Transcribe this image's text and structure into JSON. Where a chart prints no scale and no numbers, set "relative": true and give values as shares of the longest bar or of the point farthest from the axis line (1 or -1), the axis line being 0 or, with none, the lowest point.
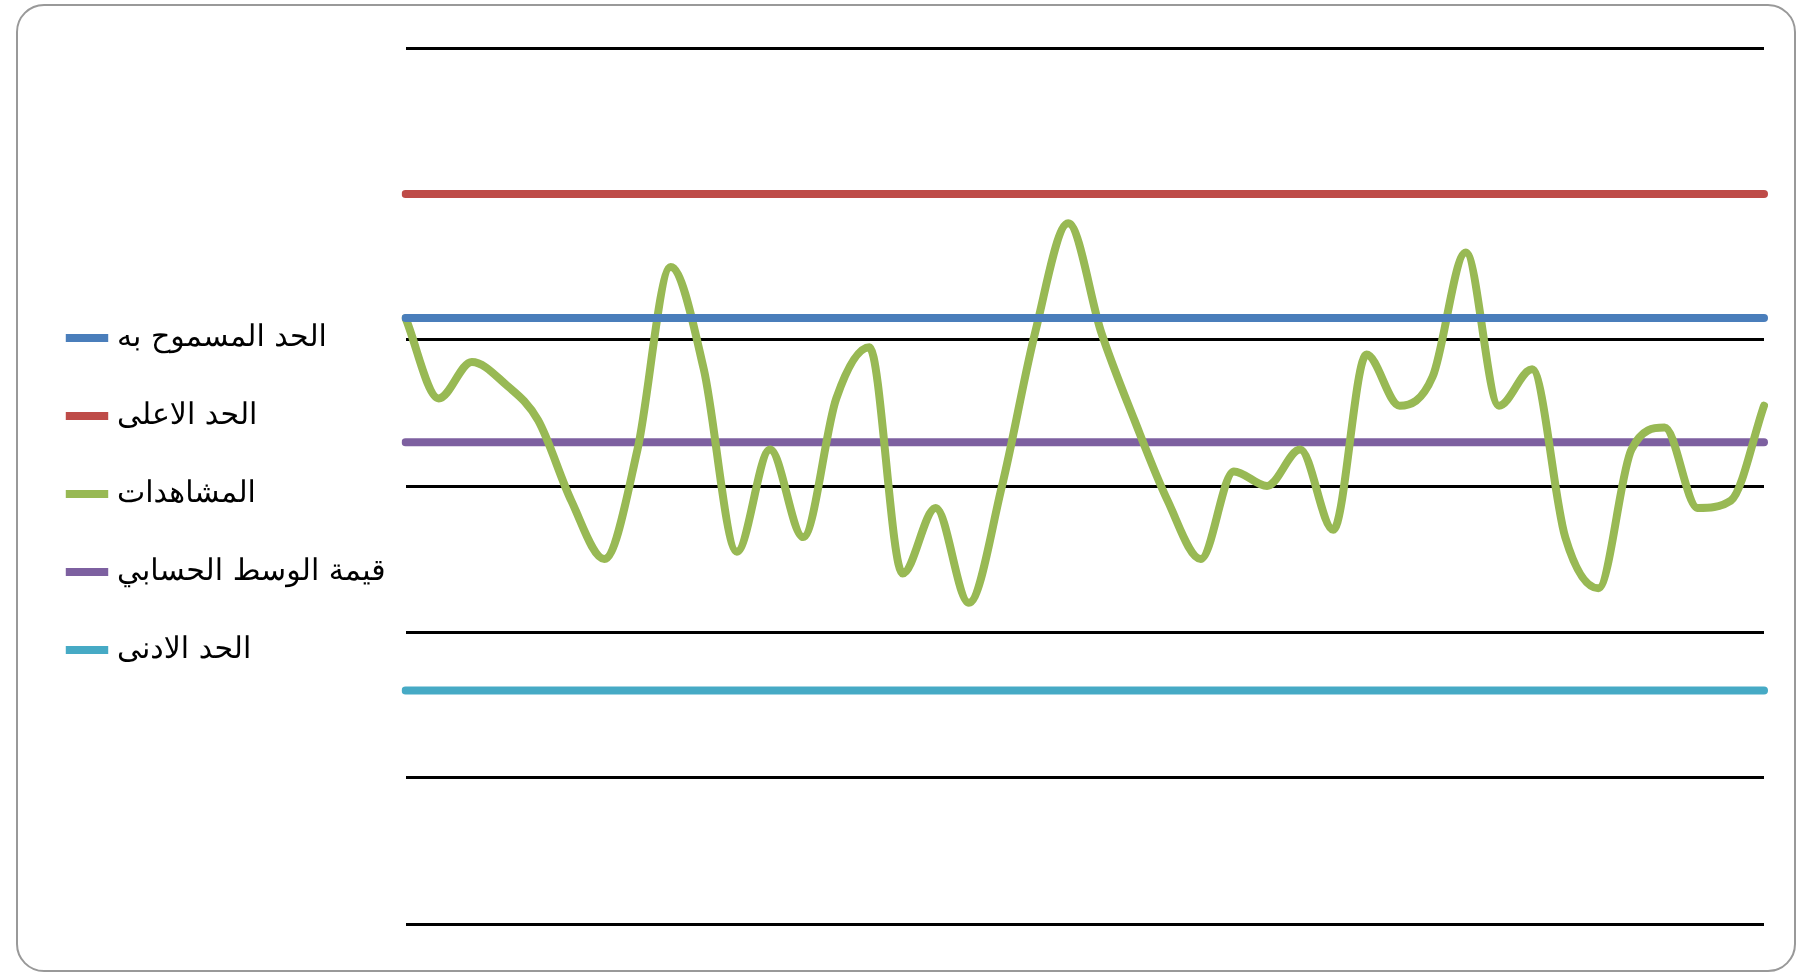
{
  "chart_data": {
    "type": "line",
    "relative": true,
    "grid": "y",
    "legend": "left",
    "marker": "none",
    "line_style": "solid",
    "categories": [
      null,
      null,
      null,
      null,
      null,
      null,
      null,
      null,
      null,
      null,
      null,
      null,
      null,
      null,
      null,
      null,
      null,
      null,
      null,
      null,
      null,
      null,
      null,
      null,
      null,
      null,
      null,
      null,
      null,
      null,
      null,
      null,
      null,
      null,
      null,
      null,
      null,
      null,
      null,
      null,
      null,
      null
    ],
    "series": [
      {
        "name": "الحد المسموح به",
        "color": "#4a7ebb",
        "values": [
          0.83,
          0.83,
          0.83,
          0.83,
          0.83,
          0.83,
          0.83,
          0.83,
          0.83,
          0.83,
          0.83,
          0.83,
          0.83,
          0.83,
          0.83,
          0.83,
          0.83,
          0.83,
          0.83,
          0.83,
          0.83,
          0.83,
          0.83,
          0.83,
          0.83,
          0.83,
          0.83,
          0.83,
          0.83,
          0.83,
          0.83,
          0.83,
          0.83,
          0.83,
          0.83,
          0.83,
          0.83,
          0.83,
          0.83,
          0.83,
          0.83,
          0.83
        ]
      },
      {
        "name": "الحد الاعلى",
        "color": "#be4b48",
        "values": [
          1,
          1,
          1,
          1,
          1,
          1,
          1,
          1,
          1,
          1,
          1,
          1,
          1,
          1,
          1,
          1,
          1,
          1,
          1,
          1,
          1,
          1,
          1,
          1,
          1,
          1,
          1,
          1,
          1,
          1,
          1,
          1,
          1,
          1,
          1,
          1,
          1,
          1,
          1,
          1,
          1,
          1
        ]
      },
      {
        "name": "المشاهدات",
        "color": "#98b954",
        "values": [
          0.83,
          0.72,
          0.77,
          0.74,
          0.69,
          0.58,
          0.5,
          0.65,
          0.9,
          0.76,
          0.51,
          0.65,
          0.53,
          0.72,
          0.79,
          0.48,
          0.57,
          0.44,
          0.6,
          0.81,
          0.96,
          0.81,
          0.69,
          0.58,
          0.5,
          0.62,
          0.6,
          0.65,
          0.54,
          0.78,
          0.71,
          0.75,
          0.92,
          0.71,
          0.76,
          0.53,
          0.46,
          0.65,
          0.68,
          0.57,
          0.58,
          0.71
        ]
      },
      {
        "name": "قيمة الوسط الحسابي",
        "color": "#7d60a0",
        "values": [
          0.66,
          0.66,
          0.66,
          0.66,
          0.66,
          0.66,
          0.66,
          0.66,
          0.66,
          0.66,
          0.66,
          0.66,
          0.66,
          0.66,
          0.66,
          0.66,
          0.66,
          0.66,
          0.66,
          0.66,
          0.66,
          0.66,
          0.66,
          0.66,
          0.66,
          0.66,
          0.66,
          0.66,
          0.66,
          0.66,
          0.66,
          0.66,
          0.66,
          0.66,
          0.66,
          0.66,
          0.66,
          0.66,
          0.66,
          0.66,
          0.66,
          0.66
        ]
      },
      {
        "name": "الحد الادنى",
        "color": "#46aac5",
        "values": [
          0.32,
          0.32,
          0.32,
          0.32,
          0.32,
          0.32,
          0.32,
          0.32,
          0.32,
          0.32,
          0.32,
          0.32,
          0.32,
          0.32,
          0.32,
          0.32,
          0.32,
          0.32,
          0.32,
          0.32,
          0.32,
          0.32,
          0.32,
          0.32,
          0.32,
          0.32,
          0.32,
          0.32,
          0.32,
          0.32,
          0.32,
          0.32,
          0.32,
          0.32,
          0.32,
          0.32,
          0.32,
          0.32,
          0.32,
          0.32,
          0.32,
          0.32
        ]
      }
    ]
  }
}
